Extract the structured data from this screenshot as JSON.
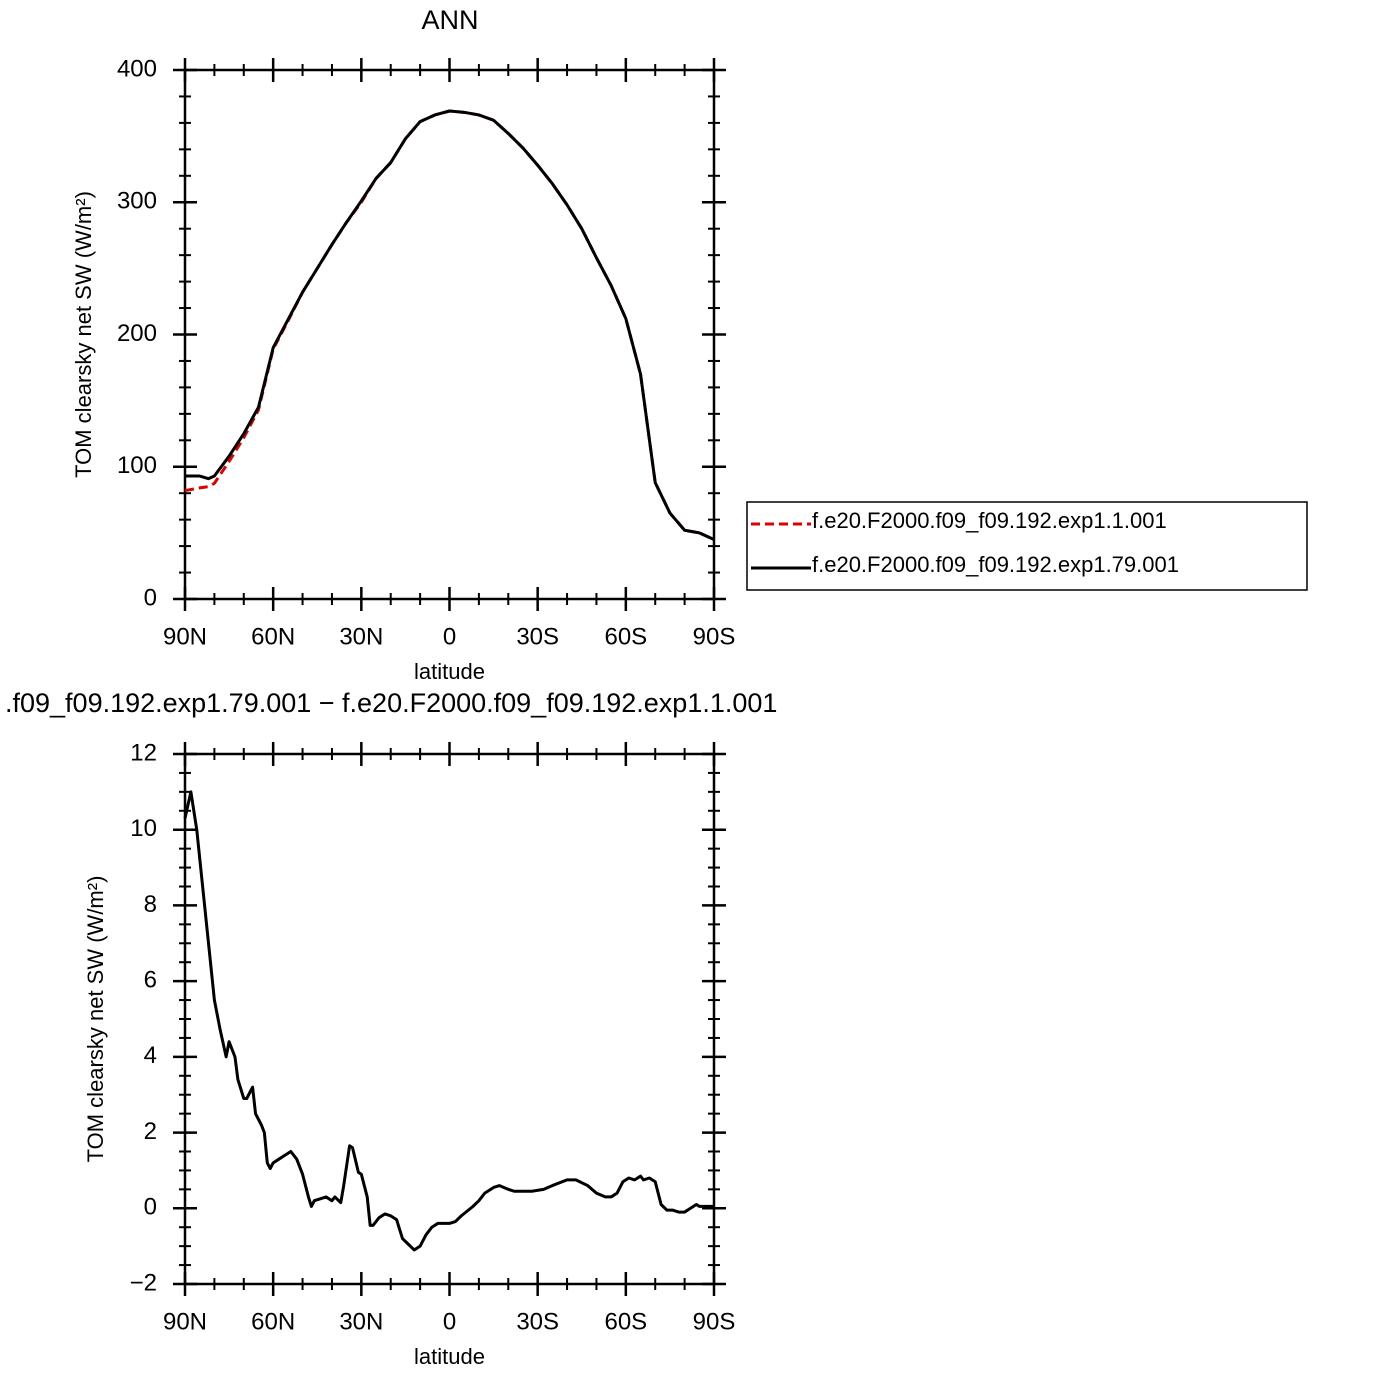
{
  "chart_data": [
    {
      "type": "line",
      "title": "ANN",
      "xlabel": "latitude",
      "ylabel": "TOM clearsky net SW (W/m²)",
      "x": [
        90,
        85,
        82,
        80,
        75,
        70,
        65,
        60,
        55,
        50,
        45,
        40,
        35,
        30,
        25,
        20,
        15,
        10,
        5,
        0,
        -5,
        -10,
        -15,
        -20,
        -25,
        -30,
        -35,
        -40,
        -45,
        -50,
        -55,
        -60,
        -65,
        -70,
        -75,
        -80,
        -85,
        -90
      ],
      "series": [
        {
          "name": "f.e20.F2000.f09_f09.192.exp1.1.001",
          "color": "#e00000",
          "linestyle": "dashed",
          "values": [
            82,
            84,
            85,
            87.5,
            104,
            122,
            143,
            189,
            210,
            232,
            250,
            268,
            285,
            300,
            318,
            330,
            348,
            361,
            366,
            369,
            368,
            366,
            362,
            352,
            341,
            328,
            314,
            298,
            280,
            258,
            237,
            212,
            170,
            88,
            65,
            52,
            50,
            45
          ]
        },
        {
          "name": "f.e20.F2000.f09_f09.192.exp1.79.001",
          "color": "#000000",
          "linestyle": "solid",
          "values": [
            93,
            93,
            91,
            93,
            108,
            125,
            145,
            190,
            211,
            232,
            250,
            268,
            285,
            301,
            318,
            330,
            348,
            361,
            366,
            369,
            368,
            366,
            362,
            352,
            341,
            328,
            314,
            298,
            280,
            258,
            237,
            212,
            170,
            88,
            65,
            52,
            50,
            45
          ]
        }
      ],
      "xlim": [
        90,
        -90
      ],
      "xticks": [
        {
          "value": 90,
          "label": "90N"
        },
        {
          "value": 60,
          "label": "60N"
        },
        {
          "value": 30,
          "label": "30N"
        },
        0,
        {
          "value": -30,
          "label": "30S"
        },
        {
          "value": -60,
          "label": "60S"
        },
        {
          "value": -90,
          "label": "90S"
        }
      ],
      "minor_xticks": [
        80,
        70,
        50,
        40,
        20,
        10,
        -10,
        -20,
        -40,
        -50,
        -70,
        -80
      ],
      "ylim": [
        0,
        400
      ],
      "yticks": [
        0,
        100,
        200,
        300,
        400
      ],
      "minor_yticks": [
        20,
        40,
        60,
        80,
        120,
        140,
        160,
        180,
        220,
        240,
        260,
        280,
        320,
        340,
        360,
        380
      ],
      "legend": "right"
    },
    {
      "type": "line",
      "title": ".f09_f09.192.exp1.79.001 − f.e20.F2000.f09_f09.192.exp1.1.001",
      "xlabel": "latitude",
      "ylabel": "TOM clearsky net SW (W/m²)",
      "x": [
        90,
        88,
        86,
        84,
        82,
        80,
        78,
        76,
        75,
        73,
        72,
        70,
        69,
        67,
        66,
        64,
        63,
        62,
        61,
        60,
        58,
        56,
        54,
        52,
        50,
        48,
        47,
        46,
        44,
        42,
        40,
        39,
        37,
        36,
        34,
        33,
        31,
        30,
        28,
        27,
        26,
        24,
        22,
        20,
        18,
        16,
        14,
        12,
        10,
        8,
        6,
        4,
        0,
        -2,
        -4,
        -8,
        -10,
        -12,
        -15,
        -17,
        -20,
        -22,
        -25,
        -28,
        -32,
        -35,
        -40,
        -43,
        -47,
        -50,
        -53,
        -55,
        -57,
        -59,
        -61,
        -63,
        -65,
        -66,
        -68,
        -70,
        -72,
        -74,
        -76,
        -78,
        -80,
        -82,
        -84,
        -85,
        -87,
        -90
      ],
      "series": [
        {
          "name": null,
          "color": "#000000",
          "linestyle": "solid",
          "values": [
            10.3,
            11.0,
            10.0,
            8.5,
            7.0,
            5.5,
            4.7,
            4.0,
            4.4,
            4.0,
            3.4,
            2.9,
            2.9,
            3.2,
            2.5,
            2.2,
            2.0,
            1.2,
            1.05,
            1.2,
            1.3,
            1.4,
            1.5,
            1.3,
            0.9,
            0.3,
            0.05,
            0.2,
            0.25,
            0.3,
            0.2,
            0.3,
            0.15,
            0.6,
            1.65,
            1.6,
            0.95,
            0.9,
            0.3,
            -0.45,
            -0.45,
            -0.25,
            -0.15,
            -0.2,
            -0.3,
            -0.8,
            -0.95,
            -1.1,
            -1.0,
            -0.7,
            -0.5,
            -0.4,
            -0.4,
            -0.35,
            -0.2,
            0.05,
            0.2,
            0.4,
            0.55,
            0.6,
            0.5,
            0.45,
            0.45,
            0.45,
            0.5,
            0.6,
            0.75,
            0.75,
            0.6,
            0.4,
            0.3,
            0.3,
            0.4,
            0.7,
            0.8,
            0.75,
            0.85,
            0.75,
            0.8,
            0.7,
            0.1,
            -0.05,
            -0.05,
            -0.1,
            -0.1,
            0.0,
            0.1,
            0.05,
            0.05,
            0.05
          ]
        }
      ],
      "xlim": [
        90,
        -90
      ],
      "xticks": [
        {
          "value": 90,
          "label": "90N"
        },
        {
          "value": 60,
          "label": "60N"
        },
        {
          "value": 30,
          "label": "30N"
        },
        0,
        {
          "value": -30,
          "label": "30S"
        },
        {
          "value": -60,
          "label": "60S"
        },
        {
          "value": -90,
          "label": "90S"
        }
      ],
      "minor_xticks": [
        80,
        70,
        50,
        40,
        20,
        10,
        -10,
        -20,
        -40,
        -50,
        -70,
        -80
      ],
      "ylim": [
        -2,
        12
      ],
      "yticks": [
        {
          "value": -2,
          "label": "−2"
        },
        0,
        2,
        4,
        6,
        8,
        10,
        12
      ],
      "minor_yticks": [
        -1.5,
        -1,
        -0.5,
        0.5,
        1,
        1.5,
        2.5,
        3,
        3.5,
        4.5,
        5,
        5.5,
        6.5,
        7,
        7.5,
        8.5,
        9,
        9.5,
        10.5,
        11,
        11.5
      ]
    }
  ]
}
